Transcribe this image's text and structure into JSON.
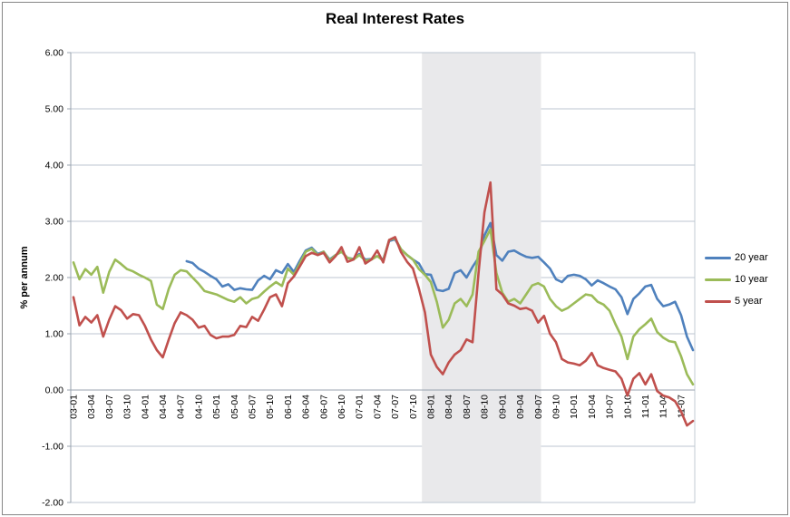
{
  "title": "Real Interest Rates",
  "y_axis": {
    "title": "% per annum",
    "min": -2,
    "max": 6,
    "step": 1,
    "tick_labels": [
      "6.00",
      "5.00",
      "4.00",
      "3.00",
      "2.00",
      "1.00",
      "0.00",
      "-1.00",
      "-2.00"
    ]
  },
  "x_axis": {
    "tick_labels": [
      "03-01",
      "03-04",
      "03-07",
      "03-10",
      "04-01",
      "04-04",
      "04-07",
      "04-10",
      "05-01",
      "05-04",
      "05-07",
      "05-10",
      "06-01",
      "06-04",
      "06-07",
      "06-10",
      "07-01",
      "07-04",
      "07-07",
      "07-10",
      "08-01",
      "08-04",
      "08-07",
      "08-10",
      "09-01",
      "09-04",
      "09-07",
      "09-10",
      "10-01",
      "10-04",
      "10-07",
      "10-10",
      "11-01",
      "11-04",
      "11-07"
    ]
  },
  "legend": [
    {
      "label": "20 year",
      "color": "#4F81BD"
    },
    {
      "label": "10 year",
      "color": "#9BBB59"
    },
    {
      "label": "5 year",
      "color": "#C0504D"
    }
  ],
  "colors": {
    "gridline": "#BCC6D0",
    "axis_line": "#98A3AF",
    "plot_border": "#C3CBD3",
    "band": "#E9E9EB",
    "label_text": "#000000"
  },
  "chart_data": {
    "type": "line",
    "title": "Real Interest Rates",
    "xlabel": "",
    "ylabel": "% per annum",
    "ylim": [
      -2,
      6
    ],
    "grid": true,
    "legend_position": "right",
    "frequency": "monthly",
    "start_period": "2003-01",
    "end_period": "2011-09",
    "tick_positions": [
      0,
      3,
      6,
      9,
      12,
      15,
      18,
      21,
      24,
      27,
      30,
      33,
      36,
      39,
      42,
      45,
      48,
      51,
      54,
      57,
      60,
      63,
      66,
      69,
      72,
      75,
      78,
      81,
      84,
      87,
      90,
      93,
      96,
      99,
      102
    ],
    "band": {
      "from_index": 58.5,
      "to_index": 78,
      "note": "shaded region spanning 08-01 through 09-07 labels"
    },
    "series": [
      {
        "name": "20 year",
        "color": "#4F81BD",
        "values": [
          null,
          null,
          null,
          null,
          null,
          null,
          null,
          null,
          null,
          null,
          null,
          null,
          null,
          null,
          null,
          null,
          null,
          null,
          null,
          2.29,
          2.26,
          2.16,
          2.1,
          2.03,
          1.97,
          1.84,
          1.88,
          1.78,
          1.81,
          1.79,
          1.78,
          1.95,
          2.03,
          1.97,
          2.13,
          2.08,
          2.24,
          2.1,
          2.3,
          2.48,
          2.53,
          2.42,
          2.46,
          2.32,
          2.4,
          2.46,
          2.35,
          2.33,
          2.42,
          2.32,
          2.33,
          2.38,
          2.32,
          2.65,
          2.68,
          2.5,
          2.4,
          2.32,
          2.25,
          2.06,
          2.05,
          1.78,
          1.76,
          1.8,
          2.08,
          2.13,
          2.0,
          2.19,
          2.35,
          2.75,
          2.97,
          2.4,
          2.3,
          2.46,
          2.48,
          2.42,
          2.37,
          2.35,
          2.37,
          2.27,
          2.16,
          1.97,
          1.92,
          2.03,
          2.05,
          2.03,
          1.97,
          1.86,
          1.95,
          1.9,
          1.84,
          1.79,
          1.65,
          1.35,
          1.62,
          1.72,
          1.84,
          1.87,
          1.62,
          1.49,
          1.52,
          1.57,
          1.33,
          0.95,
          0.71
        ]
      },
      {
        "name": "10 year",
        "color": "#9BBB59",
        "values": [
          2.27,
          1.97,
          2.15,
          2.05,
          2.19,
          1.73,
          2.1,
          2.32,
          2.24,
          2.15,
          2.11,
          2.05,
          2.0,
          1.94,
          1.52,
          1.44,
          1.8,
          2.05,
          2.13,
          2.11,
          2.0,
          1.89,
          1.76,
          1.73,
          1.7,
          1.65,
          1.6,
          1.57,
          1.65,
          1.54,
          1.62,
          1.65,
          1.75,
          1.84,
          1.92,
          1.85,
          2.16,
          2.05,
          2.25,
          2.46,
          2.51,
          2.4,
          2.46,
          2.3,
          2.4,
          2.46,
          2.35,
          2.32,
          2.4,
          2.3,
          2.32,
          2.38,
          2.3,
          2.67,
          2.7,
          2.5,
          2.4,
          2.32,
          2.15,
          2.05,
          1.92,
          1.57,
          1.11,
          1.25,
          1.54,
          1.62,
          1.49,
          1.7,
          2.46,
          2.65,
          2.86,
          2.08,
          1.73,
          1.57,
          1.62,
          1.54,
          1.7,
          1.86,
          1.9,
          1.84,
          1.62,
          1.49,
          1.41,
          1.46,
          1.54,
          1.62,
          1.7,
          1.68,
          1.57,
          1.52,
          1.41,
          1.17,
          0.95,
          0.55,
          0.95,
          1.08,
          1.17,
          1.27,
          1.03,
          0.93,
          0.87,
          0.85,
          0.6,
          0.28,
          0.1
        ]
      },
      {
        "name": "5 year",
        "color": "#C0504D",
        "values": [
          1.65,
          1.15,
          1.3,
          1.2,
          1.33,
          0.95,
          1.25,
          1.49,
          1.42,
          1.27,
          1.35,
          1.33,
          1.14,
          0.9,
          0.71,
          0.58,
          0.9,
          1.19,
          1.38,
          1.33,
          1.25,
          1.11,
          1.14,
          0.98,
          0.92,
          0.95,
          0.95,
          0.98,
          1.14,
          1.12,
          1.3,
          1.23,
          1.43,
          1.65,
          1.7,
          1.49,
          1.9,
          2.02,
          2.2,
          2.38,
          2.44,
          2.4,
          2.44,
          2.27,
          2.38,
          2.54,
          2.28,
          2.32,
          2.54,
          2.25,
          2.32,
          2.48,
          2.27,
          2.67,
          2.72,
          2.45,
          2.28,
          2.16,
          1.8,
          1.38,
          0.63,
          0.41,
          0.28,
          0.49,
          0.63,
          0.71,
          0.9,
          0.85,
          2.08,
          3.16,
          3.69,
          1.79,
          1.7,
          1.54,
          1.5,
          1.44,
          1.46,
          1.41,
          1.2,
          1.32,
          1.0,
          0.85,
          0.55,
          0.49,
          0.47,
          0.44,
          0.52,
          0.66,
          0.44,
          0.39,
          0.36,
          0.33,
          0.2,
          -0.1,
          0.2,
          0.3,
          0.1,
          0.28,
          -0.02,
          -0.1,
          -0.13,
          -0.2,
          -0.38,
          -0.63,
          -0.55
        ]
      }
    ]
  }
}
